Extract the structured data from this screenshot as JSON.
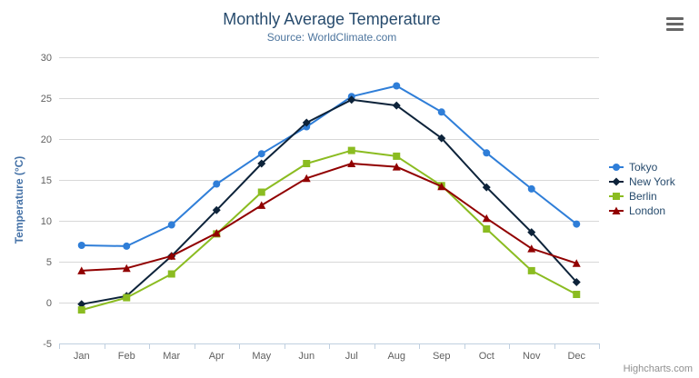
{
  "header": {
    "title": "Monthly Average Temperature",
    "subtitle": "Source: WorldClimate.com"
  },
  "credits_label": "Highcharts.com",
  "icons": {
    "context_menu": "hamburger-icon"
  },
  "colors": {
    "title": "#274b6d",
    "subtitle": "#4d759e",
    "axis_title": "#4572a7",
    "axis_label": "#606060",
    "grid": "#d8d8d8",
    "axis_line": "#c0d0e0",
    "legend_text": "#274b6d",
    "credits": "#909090"
  },
  "chart_data": {
    "type": "line",
    "title": "Monthly Average Temperature",
    "subtitle": "Source: WorldClimate.com",
    "xlabel": "",
    "ylabel": "Temperature (°C)",
    "categories": [
      "Jan",
      "Feb",
      "Mar",
      "Apr",
      "May",
      "Jun",
      "Jul",
      "Aug",
      "Sep",
      "Oct",
      "Nov",
      "Dec"
    ],
    "yticks": [
      -5,
      0,
      5,
      10,
      15,
      20,
      25,
      30
    ],
    "ylim": [
      -5,
      30
    ],
    "grid": true,
    "legend_position": "right",
    "series": [
      {
        "name": "Tokyo",
        "color": "#2f7ed8",
        "marker": "circle",
        "values": [
          7.0,
          6.9,
          9.5,
          14.5,
          18.2,
          21.5,
          25.2,
          26.5,
          23.3,
          18.3,
          13.9,
          9.6
        ]
      },
      {
        "name": "New York",
        "color": "#0d233a",
        "marker": "diamond",
        "values": [
          -0.2,
          0.8,
          5.7,
          11.3,
          17.0,
          22.0,
          24.8,
          24.1,
          20.1,
          14.1,
          8.6,
          2.5
        ]
      },
      {
        "name": "Berlin",
        "color": "#8bbc21",
        "marker": "square",
        "values": [
          -0.9,
          0.6,
          3.5,
          8.4,
          13.5,
          17.0,
          18.6,
          17.9,
          14.3,
          9.0,
          3.9,
          1.0
        ]
      },
      {
        "name": "London",
        "color": "#910000",
        "marker": "triangle",
        "values": [
          3.9,
          4.2,
          5.7,
          8.5,
          11.9,
          15.2,
          17.0,
          16.6,
          14.2,
          10.3,
          6.6,
          4.8
        ]
      }
    ]
  }
}
